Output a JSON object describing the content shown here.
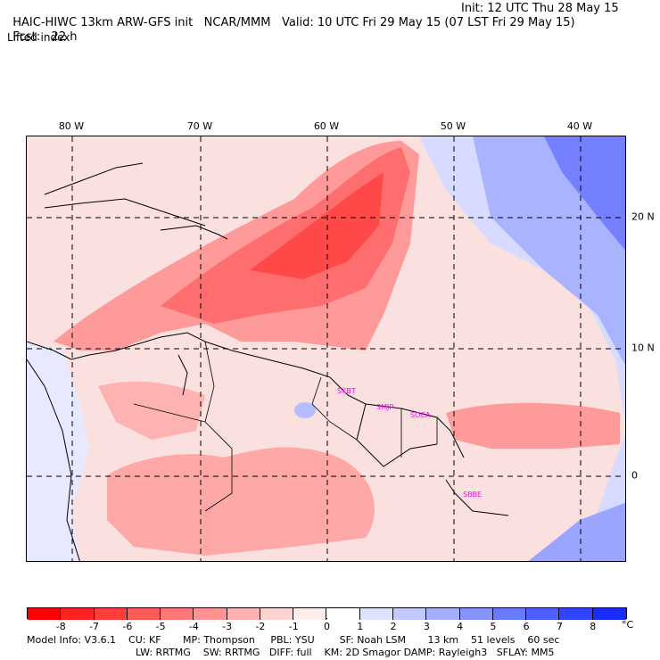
{
  "header": {
    "model_title": "HAIC-HIWC 13km ARW-GFS init",
    "org": "NCAR/MMM",
    "init": "Init: 12 UTC Thu 28 May 15",
    "fcst_label": "Fcst:",
    "fcst_value": "22 h",
    "valid": "Valid: 10 UTC Fri 29 May 15 (07 LST Fri 29 May 15)",
    "field": "Lifted index"
  },
  "map": {
    "lon_labels": [
      "80 W",
      "70 W",
      "60 W",
      "50 W",
      "40 W"
    ],
    "lat_labels": [
      "20 N",
      "10 N",
      "0"
    ],
    "sites": [
      "SKBT",
      "SMJP",
      "SOCA",
      "SBBE"
    ]
  },
  "colorbar": {
    "ticks": [
      "-8",
      "-7",
      "-6",
      "-5",
      "-4",
      "-3",
      "-2",
      "-1",
      "0",
      "1",
      "2",
      "3",
      "4",
      "5",
      "6",
      "7",
      "8"
    ],
    "unit": "°C",
    "colors": [
      "#ff0000",
      "#ff2222",
      "#ff3e3e",
      "#ff5a5a",
      "#ff7676",
      "#ff9292",
      "#ffb2b2",
      "#ffd2d2",
      "#ffeded",
      "#ffffff",
      "#dfe3ff",
      "#c3caff",
      "#a5afff",
      "#8794ff",
      "#6a7aff",
      "#4d60ff",
      "#2f45ff",
      "#1a2bff"
    ]
  },
  "footer": {
    "line1": "Model Info: V3.6.1    CU: KF       MP: Thompson     PBL: YSU        SF: Noah LSM       13 km    51 levels    60 sec",
    "line2": "LW: RRTMG    SW: RRTMG   DIFF: full    KM: 2D Smagor DAMP: Rayleigh3   SFLAY: MM5"
  }
}
